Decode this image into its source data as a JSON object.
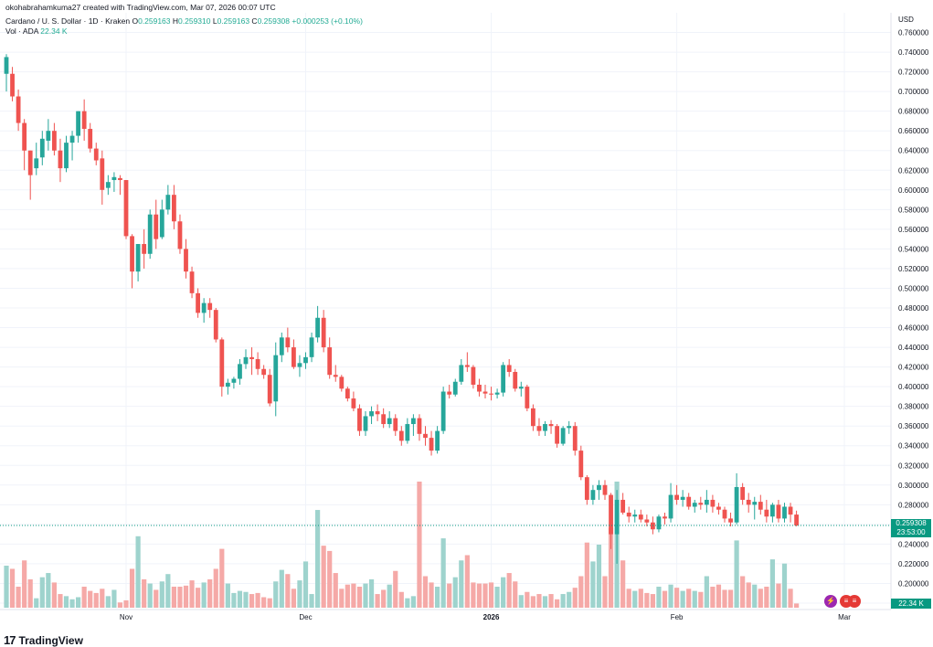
{
  "header": {
    "attribution": "okohabrahamkuma27 created with TradingView.com, Mar 07, 2026 00:07 UTC",
    "symbol": "Cardano / U. S. Dollar · 1D · Kraken",
    "o_label": "O",
    "o_value": "0.259163",
    "h_label": "H",
    "h_value": "0.259310",
    "l_label": "L",
    "l_value": "0.259163",
    "c_label": "C",
    "c_value": "0.259308",
    "change": "+0.000253 (+0.10%)",
    "vol_label": "Vol · ADA",
    "vol_value": "22.34 K"
  },
  "axis": {
    "currency": "USD",
    "current_price": "0.259308",
    "countdown": "23:53:00",
    "current_volume": "22.34 K"
  },
  "footer": {
    "brand": "TradingView"
  },
  "colors": {
    "up": "#26a69a",
    "down": "#ef5350",
    "vol_up": "#9ed3cd",
    "vol_down": "#f5a9a7"
  },
  "chart_data": {
    "type": "candlestick",
    "y_ticks": [
      "0.180000",
      "0.200000",
      "0.220000",
      "0.240000",
      "0.260000",
      "0.280000",
      "0.300000",
      "0.320000",
      "0.340000",
      "0.360000",
      "0.380000",
      "0.400000",
      "0.420000",
      "0.440000",
      "0.460000",
      "0.480000",
      "0.500000",
      "0.520000",
      "0.540000",
      "0.560000",
      "0.580000",
      "0.600000",
      "0.620000",
      "0.640000",
      "0.660000",
      "0.680000",
      "0.700000",
      "0.720000",
      "0.740000",
      "0.760000"
    ],
    "ylim": [
      0.18,
      0.78
    ],
    "x_labels": [
      {
        "label": "Nov",
        "bar": 20,
        "bold": false
      },
      {
        "label": "Dec",
        "bar": 50,
        "bold": false
      },
      {
        "label": "2026",
        "bar": 81,
        "bold": true
      },
      {
        "label": "Feb",
        "bar": 112,
        "bold": false
      },
      {
        "label": "Mar",
        "bar": 140,
        "bold": false
      }
    ],
    "candles": [
      {
        "o": 0.718,
        "h": 0.738,
        "l": 0.7,
        "c": 0.735,
        "v": 0.4
      },
      {
        "o": 0.718,
        "h": 0.725,
        "l": 0.69,
        "c": 0.695,
        "v": 0.37
      },
      {
        "o": 0.695,
        "h": 0.702,
        "l": 0.66,
        "c": 0.668,
        "v": 0.2
      },
      {
        "o": 0.668,
        "h": 0.672,
        "l": 0.62,
        "c": 0.64,
        "v": 0.45
      },
      {
        "o": 0.64,
        "h": 0.64,
        "l": 0.59,
        "c": 0.615,
        "v": 0.27
      },
      {
        "o": 0.622,
        "h": 0.648,
        "l": 0.615,
        "c": 0.632,
        "v": 0.09
      },
      {
        "o": 0.633,
        "h": 0.66,
        "l": 0.625,
        "c": 0.652,
        "v": 0.29
      },
      {
        "o": 0.65,
        "h": 0.672,
        "l": 0.64,
        "c": 0.66,
        "v": 0.33
      },
      {
        "o": 0.66,
        "h": 0.668,
        "l": 0.635,
        "c": 0.64,
        "v": 0.24
      },
      {
        "o": 0.64,
        "h": 0.652,
        "l": 0.608,
        "c": 0.622,
        "v": 0.13
      },
      {
        "o": 0.622,
        "h": 0.655,
        "l": 0.618,
        "c": 0.648,
        "v": 0.11
      },
      {
        "o": 0.648,
        "h": 0.66,
        "l": 0.63,
        "c": 0.655,
        "v": 0.08
      },
      {
        "o": 0.655,
        "h": 0.68,
        "l": 0.648,
        "c": 0.68,
        "v": 0.1
      },
      {
        "o": 0.68,
        "h": 0.692,
        "l": 0.65,
        "c": 0.662,
        "v": 0.2
      },
      {
        "o": 0.662,
        "h": 0.668,
        "l": 0.638,
        "c": 0.642,
        "v": 0.16
      },
      {
        "o": 0.642,
        "h": 0.648,
        "l": 0.625,
        "c": 0.63,
        "v": 0.14
      },
      {
        "o": 0.632,
        "h": 0.64,
        "l": 0.585,
        "c": 0.6,
        "v": 0.18
      },
      {
        "o": 0.602,
        "h": 0.615,
        "l": 0.595,
        "c": 0.608,
        "v": 0.11
      },
      {
        "o": 0.61,
        "h": 0.618,
        "l": 0.598,
        "c": 0.613,
        "v": 0.17
      },
      {
        "o": 0.612,
        "h": 0.615,
        "l": 0.595,
        "c": 0.61,
        "v": 0.05
      },
      {
        "o": 0.61,
        "h": 0.61,
        "l": 0.55,
        "c": 0.553,
        "v": 0.07
      },
      {
        "o": 0.553,
        "h": 0.555,
        "l": 0.5,
        "c": 0.517,
        "v": 0.37
      },
      {
        "o": 0.517,
        "h": 0.545,
        "l": 0.507,
        "c": 0.545,
        "v": 0.68
      },
      {
        "o": 0.545,
        "h": 0.56,
        "l": 0.52,
        "c": 0.535,
        "v": 0.27
      },
      {
        "o": 0.535,
        "h": 0.58,
        "l": 0.53,
        "c": 0.575,
        "v": 0.23
      },
      {
        "o": 0.575,
        "h": 0.59,
        "l": 0.54,
        "c": 0.55,
        "v": 0.17
      },
      {
        "o": 0.552,
        "h": 0.59,
        "l": 0.55,
        "c": 0.58,
        "v": 0.25
      },
      {
        "o": 0.58,
        "h": 0.605,
        "l": 0.575,
        "c": 0.595,
        "v": 0.32
      },
      {
        "o": 0.595,
        "h": 0.605,
        "l": 0.56,
        "c": 0.568,
        "v": 0.2
      },
      {
        "o": 0.568,
        "h": 0.575,
        "l": 0.535,
        "c": 0.54,
        "v": 0.2
      },
      {
        "o": 0.54,
        "h": 0.55,
        "l": 0.51,
        "c": 0.517,
        "v": 0.21
      },
      {
        "o": 0.517,
        "h": 0.522,
        "l": 0.49,
        "c": 0.495,
        "v": 0.26
      },
      {
        "o": 0.495,
        "h": 0.5,
        "l": 0.47,
        "c": 0.475,
        "v": 0.19
      },
      {
        "o": 0.475,
        "h": 0.49,
        "l": 0.465,
        "c": 0.485,
        "v": 0.24
      },
      {
        "o": 0.485,
        "h": 0.49,
        "l": 0.47,
        "c": 0.478,
        "v": 0.27
      },
      {
        "o": 0.478,
        "h": 0.48,
        "l": 0.445,
        "c": 0.448,
        "v": 0.37
      },
      {
        "o": 0.448,
        "h": 0.45,
        "l": 0.39,
        "c": 0.4,
        "v": 0.56
      },
      {
        "o": 0.4,
        "h": 0.408,
        "l": 0.392,
        "c": 0.404,
        "v": 0.23
      },
      {
        "o": 0.404,
        "h": 0.41,
        "l": 0.398,
        "c": 0.408,
        "v": 0.14
      },
      {
        "o": 0.408,
        "h": 0.428,
        "l": 0.402,
        "c": 0.423,
        "v": 0.16
      },
      {
        "o": 0.423,
        "h": 0.438,
        "l": 0.418,
        "c": 0.43,
        "v": 0.15
      },
      {
        "o": 0.43,
        "h": 0.44,
        "l": 0.412,
        "c": 0.428,
        "v": 0.13
      },
      {
        "o": 0.428,
        "h": 0.435,
        "l": 0.412,
        "c": 0.418,
        "v": 0.14
      },
      {
        "o": 0.418,
        "h": 0.422,
        "l": 0.408,
        "c": 0.412,
        "v": 0.1
      },
      {
        "o": 0.412,
        "h": 0.418,
        "l": 0.38,
        "c": 0.383,
        "v": 0.09
      },
      {
        "o": 0.385,
        "h": 0.445,
        "l": 0.37,
        "c": 0.432,
        "v": 0.25
      },
      {
        "o": 0.432,
        "h": 0.455,
        "l": 0.425,
        "c": 0.45,
        "v": 0.36
      },
      {
        "o": 0.45,
        "h": 0.46,
        "l": 0.435,
        "c": 0.44,
        "v": 0.32
      },
      {
        "o": 0.44,
        "h": 0.448,
        "l": 0.418,
        "c": 0.42,
        "v": 0.18
      },
      {
        "o": 0.42,
        "h": 0.432,
        "l": 0.41,
        "c": 0.424,
        "v": 0.26
      },
      {
        "o": 0.424,
        "h": 0.435,
        "l": 0.418,
        "c": 0.43,
        "v": 0.44
      },
      {
        "o": 0.43,
        "h": 0.455,
        "l": 0.425,
        "c": 0.45,
        "v": 0.13
      },
      {
        "o": 0.45,
        "h": 0.482,
        "l": 0.445,
        "c": 0.47,
        "v": 0.93
      },
      {
        "o": 0.47,
        "h": 0.478,
        "l": 0.435,
        "c": 0.44,
        "v": 0.59
      },
      {
        "o": 0.44,
        "h": 0.45,
        "l": 0.408,
        "c": 0.412,
        "v": 0.54
      },
      {
        "o": 0.412,
        "h": 0.422,
        "l": 0.405,
        "c": 0.41,
        "v": 0.33
      },
      {
        "o": 0.41,
        "h": 0.412,
        "l": 0.395,
        "c": 0.398,
        "v": 0.18
      },
      {
        "o": 0.398,
        "h": 0.4,
        "l": 0.385,
        "c": 0.388,
        "v": 0.22
      },
      {
        "o": 0.388,
        "h": 0.395,
        "l": 0.375,
        "c": 0.378,
        "v": 0.23
      },
      {
        "o": 0.378,
        "h": 0.382,
        "l": 0.35,
        "c": 0.355,
        "v": 0.2
      },
      {
        "o": 0.355,
        "h": 0.375,
        "l": 0.35,
        "c": 0.37,
        "v": 0.23
      },
      {
        "o": 0.37,
        "h": 0.38,
        "l": 0.362,
        "c": 0.375,
        "v": 0.27
      },
      {
        "o": 0.375,
        "h": 0.382,
        "l": 0.365,
        "c": 0.372,
        "v": 0.13
      },
      {
        "o": 0.372,
        "h": 0.378,
        "l": 0.358,
        "c": 0.362,
        "v": 0.17
      },
      {
        "o": 0.362,
        "h": 0.375,
        "l": 0.358,
        "c": 0.368,
        "v": 0.22
      },
      {
        "o": 0.368,
        "h": 0.372,
        "l": 0.35,
        "c": 0.355,
        "v": 0.35
      },
      {
        "o": 0.355,
        "h": 0.36,
        "l": 0.34,
        "c": 0.345,
        "v": 0.15
      },
      {
        "o": 0.345,
        "h": 0.368,
        "l": 0.342,
        "c": 0.362,
        "v": 0.09
      },
      {
        "o": 0.362,
        "h": 0.372,
        "l": 0.35,
        "c": 0.368,
        "v": 0.11
      },
      {
        "o": 0.368,
        "h": 0.372,
        "l": 0.345,
        "c": 0.352,
        "v": 1.2
      },
      {
        "o": 0.352,
        "h": 0.36,
        "l": 0.34,
        "c": 0.348,
        "v": 0.3
      },
      {
        "o": 0.348,
        "h": 0.355,
        "l": 0.33,
        "c": 0.335,
        "v": 0.24
      },
      {
        "o": 0.335,
        "h": 0.36,
        "l": 0.332,
        "c": 0.355,
        "v": 0.2
      },
      {
        "o": 0.355,
        "h": 0.4,
        "l": 0.352,
        "c": 0.395,
        "v": 0.66
      },
      {
        "o": 0.395,
        "h": 0.402,
        "l": 0.388,
        "c": 0.392,
        "v": 0.23
      },
      {
        "o": 0.392,
        "h": 0.408,
        "l": 0.39,
        "c": 0.405,
        "v": 0.29
      },
      {
        "o": 0.405,
        "h": 0.428,
        "l": 0.402,
        "c": 0.422,
        "v": 0.45
      },
      {
        "o": 0.422,
        "h": 0.435,
        "l": 0.415,
        "c": 0.42,
        "v": 0.5
      },
      {
        "o": 0.42,
        "h": 0.422,
        "l": 0.398,
        "c": 0.402,
        "v": 0.24
      },
      {
        "o": 0.402,
        "h": 0.408,
        "l": 0.39,
        "c": 0.395,
        "v": 0.23
      },
      {
        "o": 0.395,
        "h": 0.402,
        "l": 0.388,
        "c": 0.393,
        "v": 0.23
      },
      {
        "o": 0.393,
        "h": 0.4,
        "l": 0.386,
        "c": 0.392,
        "v": 0.24
      },
      {
        "o": 0.392,
        "h": 0.398,
        "l": 0.388,
        "c": 0.394,
        "v": 0.2
      },
      {
        "o": 0.394,
        "h": 0.425,
        "l": 0.39,
        "c": 0.422,
        "v": 0.29
      },
      {
        "o": 0.422,
        "h": 0.428,
        "l": 0.41,
        "c": 0.415,
        "v": 0.33
      },
      {
        "o": 0.415,
        "h": 0.418,
        "l": 0.395,
        "c": 0.398,
        "v": 0.25
      },
      {
        "o": 0.398,
        "h": 0.405,
        "l": 0.39,
        "c": 0.4,
        "v": 0.12
      },
      {
        "o": 0.4,
        "h": 0.402,
        "l": 0.375,
        "c": 0.378,
        "v": 0.15
      },
      {
        "o": 0.378,
        "h": 0.382,
        "l": 0.355,
        "c": 0.36,
        "v": 0.11
      },
      {
        "o": 0.36,
        "h": 0.368,
        "l": 0.35,
        "c": 0.355,
        "v": 0.13
      },
      {
        "o": 0.355,
        "h": 0.365,
        "l": 0.35,
        "c": 0.362,
        "v": 0.11
      },
      {
        "o": 0.362,
        "h": 0.366,
        "l": 0.352,
        "c": 0.36,
        "v": 0.13
      },
      {
        "o": 0.36,
        "h": 0.362,
        "l": 0.338,
        "c": 0.342,
        "v": 0.08
      },
      {
        "o": 0.342,
        "h": 0.36,
        "l": 0.34,
        "c": 0.358,
        "v": 0.13
      },
      {
        "o": 0.358,
        "h": 0.365,
        "l": 0.352,
        "c": 0.36,
        "v": 0.15
      },
      {
        "o": 0.36,
        "h": 0.364,
        "l": 0.33,
        "c": 0.335,
        "v": 0.19
      },
      {
        "o": 0.335,
        "h": 0.34,
        "l": 0.305,
        "c": 0.308,
        "v": 0.3
      },
      {
        "o": 0.308,
        "h": 0.31,
        "l": 0.28,
        "c": 0.285,
        "v": 0.62
      },
      {
        "o": 0.285,
        "h": 0.3,
        "l": 0.28,
        "c": 0.295,
        "v": 0.44
      },
      {
        "o": 0.295,
        "h": 0.305,
        "l": 0.285,
        "c": 0.3,
        "v": 0.6
      },
      {
        "o": 0.3,
        "h": 0.305,
        "l": 0.285,
        "c": 0.29,
        "v": 0.3
      },
      {
        "o": 0.29,
        "h": 0.292,
        "l": 0.235,
        "c": 0.25,
        "v": 0.76
      },
      {
        "o": 0.25,
        "h": 0.295,
        "l": 0.22,
        "c": 0.285,
        "v": 1.2
      },
      {
        "o": 0.285,
        "h": 0.292,
        "l": 0.27,
        "c": 0.272,
        "v": 0.45
      },
      {
        "o": 0.272,
        "h": 0.278,
        "l": 0.262,
        "c": 0.268,
        "v": 0.18
      },
      {
        "o": 0.268,
        "h": 0.275,
        "l": 0.262,
        "c": 0.27,
        "v": 0.16
      },
      {
        "o": 0.27,
        "h": 0.275,
        "l": 0.262,
        "c": 0.265,
        "v": 0.18
      },
      {
        "o": 0.265,
        "h": 0.27,
        "l": 0.258,
        "c": 0.262,
        "v": 0.14
      },
      {
        "o": 0.262,
        "h": 0.268,
        "l": 0.25,
        "c": 0.255,
        "v": 0.13
      },
      {
        "o": 0.255,
        "h": 0.27,
        "l": 0.252,
        "c": 0.268,
        "v": 0.2
      },
      {
        "o": 0.268,
        "h": 0.272,
        "l": 0.26,
        "c": 0.266,
        "v": 0.16
      },
      {
        "o": 0.266,
        "h": 0.302,
        "l": 0.262,
        "c": 0.29,
        "v": 0.22
      },
      {
        "o": 0.29,
        "h": 0.3,
        "l": 0.28,
        "c": 0.285,
        "v": 0.19
      },
      {
        "o": 0.285,
        "h": 0.295,
        "l": 0.278,
        "c": 0.288,
        "v": 0.16
      },
      {
        "o": 0.288,
        "h": 0.292,
        "l": 0.275,
        "c": 0.278,
        "v": 0.18
      },
      {
        "o": 0.278,
        "h": 0.285,
        "l": 0.272,
        "c": 0.282,
        "v": 0.16
      },
      {
        "o": 0.282,
        "h": 0.288,
        "l": 0.275,
        "c": 0.28,
        "v": 0.15
      },
      {
        "o": 0.28,
        "h": 0.295,
        "l": 0.272,
        "c": 0.285,
        "v": 0.3
      },
      {
        "o": 0.285,
        "h": 0.29,
        "l": 0.272,
        "c": 0.278,
        "v": 0.2
      },
      {
        "o": 0.278,
        "h": 0.282,
        "l": 0.27,
        "c": 0.275,
        "v": 0.22
      },
      {
        "o": 0.275,
        "h": 0.278,
        "l": 0.262,
        "c": 0.266,
        "v": 0.17
      },
      {
        "o": 0.266,
        "h": 0.272,
        "l": 0.258,
        "c": 0.262,
        "v": 0.17
      },
      {
        "o": 0.262,
        "h": 0.312,
        "l": 0.26,
        "c": 0.298,
        "v": 0.64
      },
      {
        "o": 0.298,
        "h": 0.302,
        "l": 0.28,
        "c": 0.285,
        "v": 0.3
      },
      {
        "o": 0.285,
        "h": 0.292,
        "l": 0.272,
        "c": 0.28,
        "v": 0.24
      },
      {
        "o": 0.28,
        "h": 0.288,
        "l": 0.265,
        "c": 0.283,
        "v": 0.22
      },
      {
        "o": 0.283,
        "h": 0.29,
        "l": 0.27,
        "c": 0.275,
        "v": 0.18
      },
      {
        "o": 0.275,
        "h": 0.285,
        "l": 0.262,
        "c": 0.268,
        "v": 0.2
      },
      {
        "o": 0.268,
        "h": 0.282,
        "l": 0.262,
        "c": 0.28,
        "v": 0.46
      },
      {
        "o": 0.28,
        "h": 0.285,
        "l": 0.262,
        "c": 0.266,
        "v": 0.23
      },
      {
        "o": 0.266,
        "h": 0.282,
        "l": 0.262,
        "c": 0.278,
        "v": 0.42
      },
      {
        "o": 0.278,
        "h": 0.282,
        "l": 0.262,
        "c": 0.27,
        "v": 0.18
      },
      {
        "o": 0.27,
        "h": 0.274,
        "l": 0.258,
        "c": 0.259,
        "v": 0.04
      }
    ]
  }
}
